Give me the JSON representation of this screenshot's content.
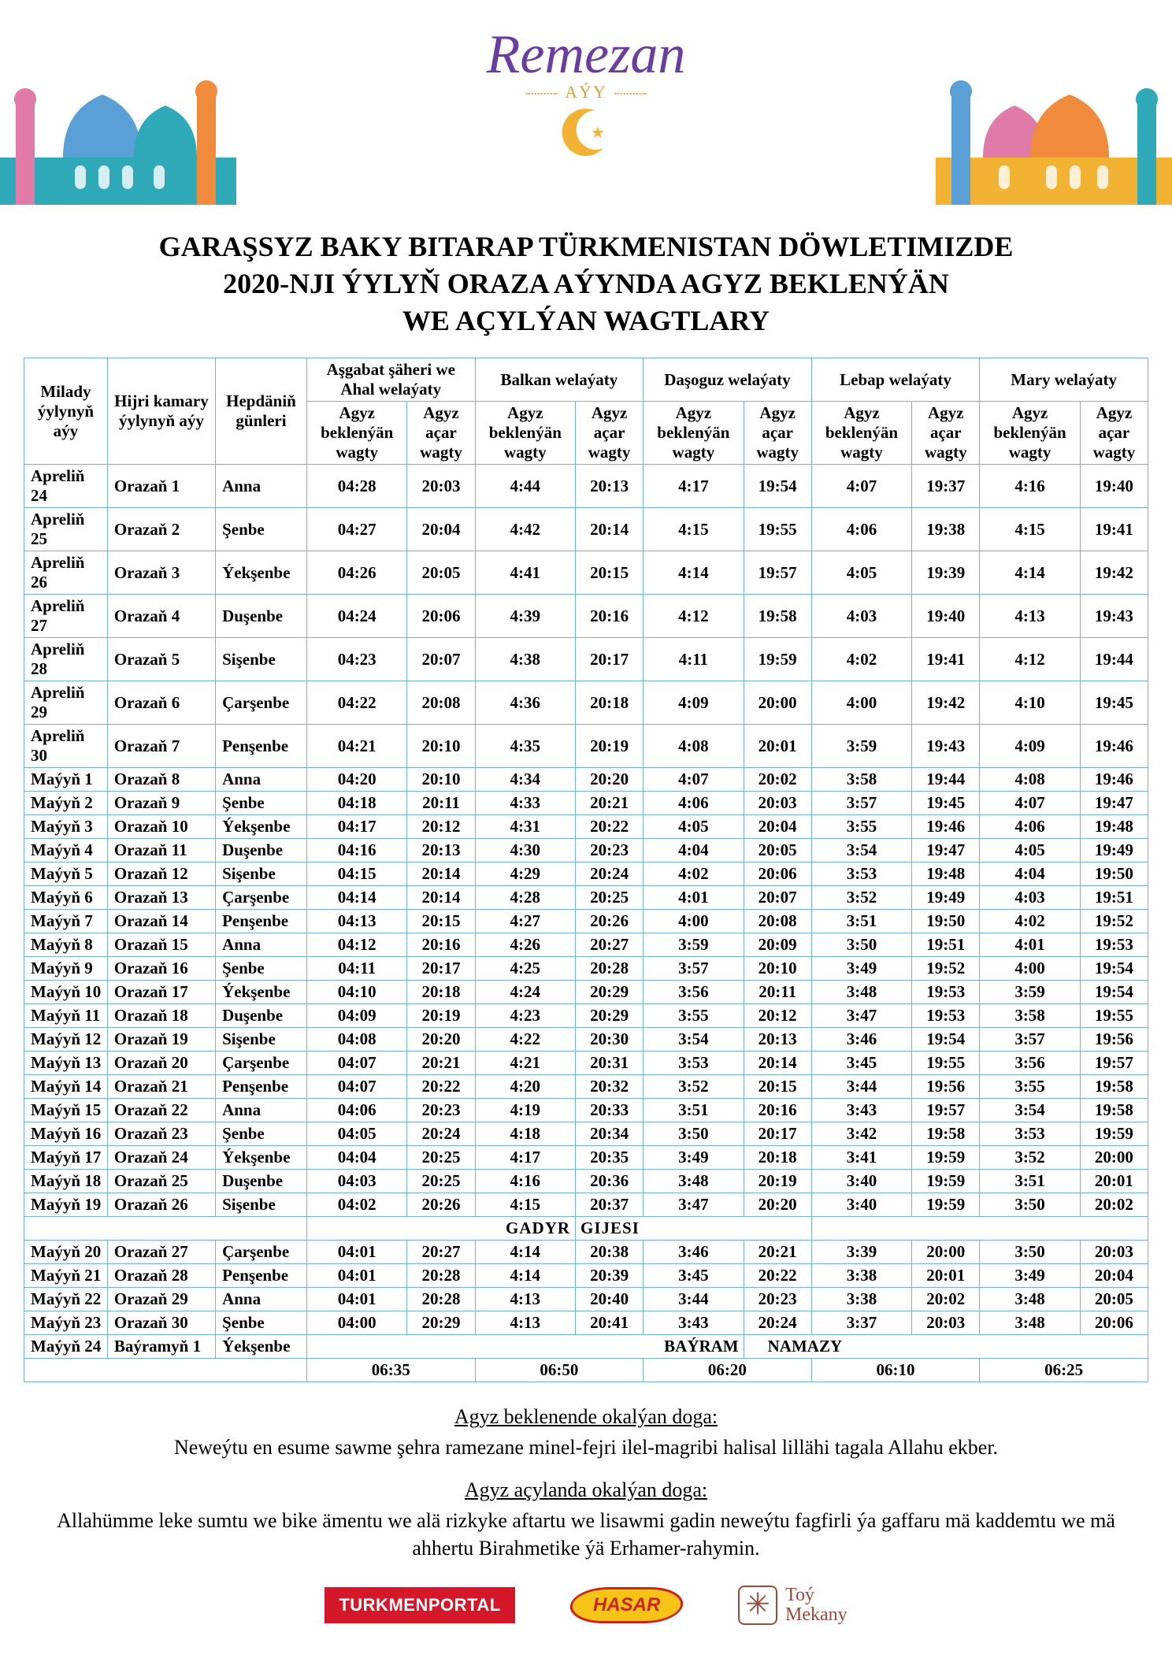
{
  "brand": {
    "title": "Remezan",
    "sub": "AÝY"
  },
  "title": "GARAŞSYZ BAKY BITARAP TÜRKMENISTAN DÖWLETIMIZDE\n2020-NJI ÝYLYŇ ORAZA AÝYNDA AGYZ BEKLENÝÄN\nWE AÇYLÝAN WAGTLARY",
  "columns": {
    "milady": "Milady ýylynyň aýy",
    "hijri": "Hijri kamary ýylynyň aýy",
    "weekday": "Hepdäniň günleri",
    "regions": [
      "Aşgabat şäheri we Ahal welaýaty",
      "Balkan welaýaty",
      "Daşoguz welaýaty",
      "Lebap welaýaty",
      "Mary welaýaty"
    ],
    "sub_close": "Agyz beklenýän wagty",
    "sub_open": "Agyz açar wagty"
  },
  "rows": [
    {
      "m": "Apreliň 24",
      "h": "Orazaň 1",
      "w": "Anna",
      "t": [
        "04:28",
        "20:03",
        "4:44",
        "20:13",
        "4:17",
        "19:54",
        "4:07",
        "19:37",
        "4:16",
        "19:40"
      ]
    },
    {
      "m": "Apreliň 25",
      "h": "Orazaň 2",
      "w": "Şenbe",
      "t": [
        "04:27",
        "20:04",
        "4:42",
        "20:14",
        "4:15",
        "19:55",
        "4:06",
        "19:38",
        "4:15",
        "19:41"
      ]
    },
    {
      "m": "Apreliň 26",
      "h": "Orazaň 3",
      "w": "Ýekşenbe",
      "t": [
        "04:26",
        "20:05",
        "4:41",
        "20:15",
        "4:14",
        "19:57",
        "4:05",
        "19:39",
        "4:14",
        "19:42"
      ]
    },
    {
      "m": "Apreliň 27",
      "h": "Orazaň 4",
      "w": "Duşenbe",
      "t": [
        "04:24",
        "20:06",
        "4:39",
        "20:16",
        "4:12",
        "19:58",
        "4:03",
        "19:40",
        "4:13",
        "19:43"
      ]
    },
    {
      "m": "Apreliň 28",
      "h": "Orazaň 5",
      "w": "Sişenbe",
      "t": [
        "04:23",
        "20:07",
        "4:38",
        "20:17",
        "4:11",
        "19:59",
        "4:02",
        "19:41",
        "4:12",
        "19:44"
      ]
    },
    {
      "m": "Apreliň 29",
      "h": "Orazaň 6",
      "w": "Çarşenbe",
      "t": [
        "04:22",
        "20:08",
        "4:36",
        "20:18",
        "4:09",
        "20:00",
        "4:00",
        "19:42",
        "4:10",
        "19:45"
      ]
    },
    {
      "m": "Apreliň 30",
      "h": "Orazaň 7",
      "w": "Penşenbe",
      "t": [
        "04:21",
        "20:10",
        "4:35",
        "20:19",
        "4:08",
        "20:01",
        "3:59",
        "19:43",
        "4:09",
        "19:46"
      ]
    },
    {
      "m": "Maýyň 1",
      "h": "Orazaň 8",
      "w": "Anna",
      "t": [
        "04:20",
        "20:10",
        "4:34",
        "20:20",
        "4:07",
        "20:02",
        "3:58",
        "19:44",
        "4:08",
        "19:46"
      ]
    },
    {
      "m": "Maýyň 2",
      "h": "Orazaň 9",
      "w": "Şenbe",
      "t": [
        "04:18",
        "20:11",
        "4:33",
        "20:21",
        "4:06",
        "20:03",
        "3:57",
        "19:45",
        "4:07",
        "19:47"
      ]
    },
    {
      "m": "Maýyň 3",
      "h": "Orazaň 10",
      "w": "Ýekşenbe",
      "t": [
        "04:17",
        "20:12",
        "4:31",
        "20:22",
        "4:05",
        "20:04",
        "3:55",
        "19:46",
        "4:06",
        "19:48"
      ]
    },
    {
      "m": "Maýyň 4",
      "h": "Orazaň 11",
      "w": "Duşenbe",
      "t": [
        "04:16",
        "20:13",
        "4:30",
        "20:23",
        "4:04",
        "20:05",
        "3:54",
        "19:47",
        "4:05",
        "19:49"
      ]
    },
    {
      "m": "Maýyň 5",
      "h": "Orazaň 12",
      "w": "Sişenbe",
      "t": [
        "04:15",
        "20:14",
        "4:29",
        "20:24",
        "4:02",
        "20:06",
        "3:53",
        "19:48",
        "4:04",
        "19:50"
      ]
    },
    {
      "m": "Maýyň 6",
      "h": "Orazaň 13",
      "w": "Çarşenbe",
      "t": [
        "04:14",
        "20:14",
        "4:28",
        "20:25",
        "4:01",
        "20:07",
        "3:52",
        "19:49",
        "4:03",
        "19:51"
      ]
    },
    {
      "m": "Maýyň 7",
      "h": "Orazaň 14",
      "w": "Penşenbe",
      "t": [
        "04:13",
        "20:15",
        "4:27",
        "20:26",
        "4:00",
        "20:08",
        "3:51",
        "19:50",
        "4:02",
        "19:52"
      ]
    },
    {
      "m": "Maýyň 8",
      "h": "Orazaň 15",
      "w": "Anna",
      "t": [
        "04:12",
        "20:16",
        "4:26",
        "20:27",
        "3:59",
        "20:09",
        "3:50",
        "19:51",
        "4:01",
        "19:53"
      ]
    },
    {
      "m": "Maýyň 9",
      "h": "Orazaň 16",
      "w": "Şenbe",
      "t": [
        "04:11",
        "20:17",
        "4:25",
        "20:28",
        "3:57",
        "20:10",
        "3:49",
        "19:52",
        "4:00",
        "19:54"
      ]
    },
    {
      "m": "Maýyň 10",
      "h": "Orazaň 17",
      "w": "Ýekşenbe",
      "t": [
        "04:10",
        "20:18",
        "4:24",
        "20:29",
        "3:56",
        "20:11",
        "3:48",
        "19:53",
        "3:59",
        "19:54"
      ]
    },
    {
      "m": "Maýyň 11",
      "h": "Orazaň 18",
      "w": "Duşenbe",
      "t": [
        "04:09",
        "20:19",
        "4:23",
        "20:29",
        "3:55",
        "20:12",
        "3:47",
        "19:53",
        "3:58",
        "19:55"
      ]
    },
    {
      "m": "Maýyň 12",
      "h": "Orazaň 19",
      "w": "Sişenbe",
      "t": [
        "04:08",
        "20:20",
        "4:22",
        "20:30",
        "3:54",
        "20:13",
        "3:46",
        "19:54",
        "3:57",
        "19:56"
      ]
    },
    {
      "m": "Maýyň 13",
      "h": "Orazaň 20",
      "w": "Çarşenbe",
      "t": [
        "04:07",
        "20:21",
        "4:21",
        "20:31",
        "3:53",
        "20:14",
        "3:45",
        "19:55",
        "3:56",
        "19:57"
      ]
    },
    {
      "m": "Maýyň 14",
      "h": "Orazaň 21",
      "w": "Penşenbe",
      "t": [
        "04:07",
        "20:22",
        "4:20",
        "20:32",
        "3:52",
        "20:15",
        "3:44",
        "19:56",
        "3:55",
        "19:58"
      ]
    },
    {
      "m": "Maýyň 15",
      "h": "Orazaň 22",
      "w": "Anna",
      "t": [
        "04:06",
        "20:23",
        "4:19",
        "20:33",
        "3:51",
        "20:16",
        "3:43",
        "19:57",
        "3:54",
        "19:58"
      ]
    },
    {
      "m": "Maýyň 16",
      "h": "Orazaň 23",
      "w": "Şenbe",
      "t": [
        "04:05",
        "20:24",
        "4:18",
        "20:34",
        "3:50",
        "20:17",
        "3:42",
        "19:58",
        "3:53",
        "19:59"
      ]
    },
    {
      "m": "Maýyň 17",
      "h": "Orazaň 24",
      "w": "Ýekşenbe",
      "t": [
        "04:04",
        "20:25",
        "4:17",
        "20:35",
        "3:49",
        "20:18",
        "3:41",
        "19:59",
        "3:52",
        "20:00"
      ]
    },
    {
      "m": "Maýyň 18",
      "h": "Orazaň 25",
      "w": "Duşenbe",
      "t": [
        "04:03",
        "20:25",
        "4:16",
        "20:36",
        "3:48",
        "20:19",
        "3:40",
        "19:59",
        "3:51",
        "20:01"
      ]
    },
    {
      "m": "Maýyň 19",
      "h": "Orazaň 26",
      "w": "Sişenbe",
      "t": [
        "04:02",
        "20:26",
        "4:15",
        "20:37",
        "3:47",
        "20:20",
        "3:40",
        "19:59",
        "3:50",
        "20:02"
      ]
    }
  ],
  "gadyr_label_left": "GADYR",
  "gadyr_label_right": "GIJESI",
  "rows_after": [
    {
      "m": "Maýyň 20",
      "h": "Orazaň 27",
      "w": "Çarşenbe",
      "t": [
        "04:01",
        "20:27",
        "4:14",
        "20:38",
        "3:46",
        "20:21",
        "3:39",
        "20:00",
        "3:50",
        "20:03"
      ]
    },
    {
      "m": "Maýyň 21",
      "h": "Orazaň 28",
      "w": "Penşenbe",
      "t": [
        "04:01",
        "20:28",
        "4:14",
        "20:39",
        "3:45",
        "20:22",
        "3:38",
        "20:01",
        "3:49",
        "20:04"
      ]
    },
    {
      "m": "Maýyň 22",
      "h": "Orazaň 29",
      "w": "Anna",
      "t": [
        "04:01",
        "20:28",
        "4:13",
        "20:40",
        "3:44",
        "20:23",
        "3:38",
        "20:02",
        "3:48",
        "20:05"
      ]
    },
    {
      "m": "Maýyň 23",
      "h": "Orazaň 30",
      "w": "Şenbe",
      "t": [
        "04:00",
        "20:29",
        "4:13",
        "20:41",
        "3:43",
        "20:24",
        "3:37",
        "20:03",
        "3:48",
        "20:06"
      ]
    }
  ],
  "bayram": {
    "m": "Maýyň 24",
    "h": "Baýramyň 1",
    "w": "Ýekşenbe",
    "label_left": "BAÝRAM",
    "label_right": "NAMAZY",
    "times": [
      "06:35",
      "06:50",
      "06:20",
      "06:10",
      "06:25"
    ]
  },
  "prayers": {
    "close_heading": "Agyz beklenende okalýan doga:",
    "close_text": "Neweýtu en esume sawme şehra ramezane minel-fejri ilel-magribi halisal lillähi tagala Allahu ekber.",
    "open_heading": "Agyz açylanda okalýan doga:",
    "open_text": "Allahümme leke sumtu we bike ämentu we alä rizkyke aftartu we lisawmi gadin neweýtu fagfirli ýa gaffaru mä kaddemtu we mä ahhertu Birahmetike ýä Erhamer-rahymin."
  },
  "logos": {
    "tp": "TURKMENPORTAL",
    "hasar": "HASAR",
    "toy": "Toý\nMekany"
  },
  "colors": {
    "border": "#6fb7c9",
    "accent": "#f2b233",
    "purple": "#6a3da0",
    "mosque_teal": "#2fa8b8",
    "mosque_orange": "#f08a3c",
    "mosque_pink": "#e07ba8",
    "mosque_blue": "#5aa0d6"
  }
}
